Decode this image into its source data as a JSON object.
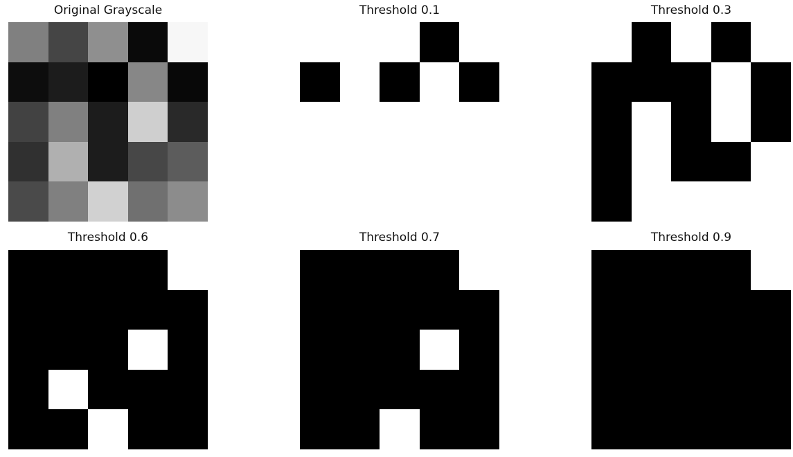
{
  "chart_data": [
    {
      "type": "heatmap",
      "title": "Original Grayscale",
      "colormap": "gray",
      "axes": "off",
      "values": [
        [
          0.5,
          0.27,
          0.56,
          0.04,
          0.97
        ],
        [
          0.05,
          0.11,
          0.0,
          0.53,
          0.03
        ],
        [
          0.26,
          0.5,
          0.11,
          0.81,
          0.16
        ],
        [
          0.19,
          0.69,
          0.11,
          0.28,
          0.36
        ],
        [
          0.29,
          0.5,
          0.82,
          0.44,
          0.55
        ]
      ]
    },
    {
      "type": "heatmap",
      "title": "Threshold 0.1",
      "colormap": "gray",
      "axes": "off",
      "values": [
        [
          1,
          1,
          1,
          0,
          1
        ],
        [
          0,
          1,
          0,
          1,
          0
        ],
        [
          1,
          1,
          1,
          1,
          1
        ],
        [
          1,
          1,
          1,
          1,
          1
        ],
        [
          1,
          1,
          1,
          1,
          1
        ]
      ]
    },
    {
      "type": "heatmap",
      "title": "Threshold 0.3",
      "colormap": "gray",
      "axes": "off",
      "values": [
        [
          1,
          0,
          1,
          0,
          1
        ],
        [
          0,
          0,
          0,
          1,
          0
        ],
        [
          0,
          1,
          0,
          1,
          0
        ],
        [
          0,
          1,
          0,
          0,
          1
        ],
        [
          0,
          1,
          1,
          1,
          1
        ]
      ]
    },
    {
      "type": "heatmap",
      "title": "Threshold 0.6",
      "colormap": "gray",
      "axes": "off",
      "values": [
        [
          0,
          0,
          0,
          0,
          1
        ],
        [
          0,
          0,
          0,
          0,
          0
        ],
        [
          0,
          0,
          0,
          1,
          0
        ],
        [
          0,
          1,
          0,
          0,
          0
        ],
        [
          0,
          0,
          1,
          0,
          0
        ]
      ]
    },
    {
      "type": "heatmap",
      "title": "Threshold 0.7",
      "colormap": "gray",
      "axes": "off",
      "values": [
        [
          0,
          0,
          0,
          0,
          1
        ],
        [
          0,
          0,
          0,
          0,
          0
        ],
        [
          0,
          0,
          0,
          1,
          0
        ],
        [
          0,
          0,
          0,
          0,
          0
        ],
        [
          0,
          0,
          1,
          0,
          0
        ]
      ]
    },
    {
      "type": "heatmap",
      "title": "Threshold 0.9",
      "colormap": "gray",
      "axes": "off",
      "values": [
        [
          0,
          0,
          0,
          0,
          1
        ],
        [
          0,
          0,
          0,
          0,
          0
        ],
        [
          0,
          0,
          0,
          0,
          0
        ],
        [
          0,
          0,
          0,
          0,
          0
        ],
        [
          0,
          0,
          0,
          0,
          0
        ]
      ]
    }
  ]
}
